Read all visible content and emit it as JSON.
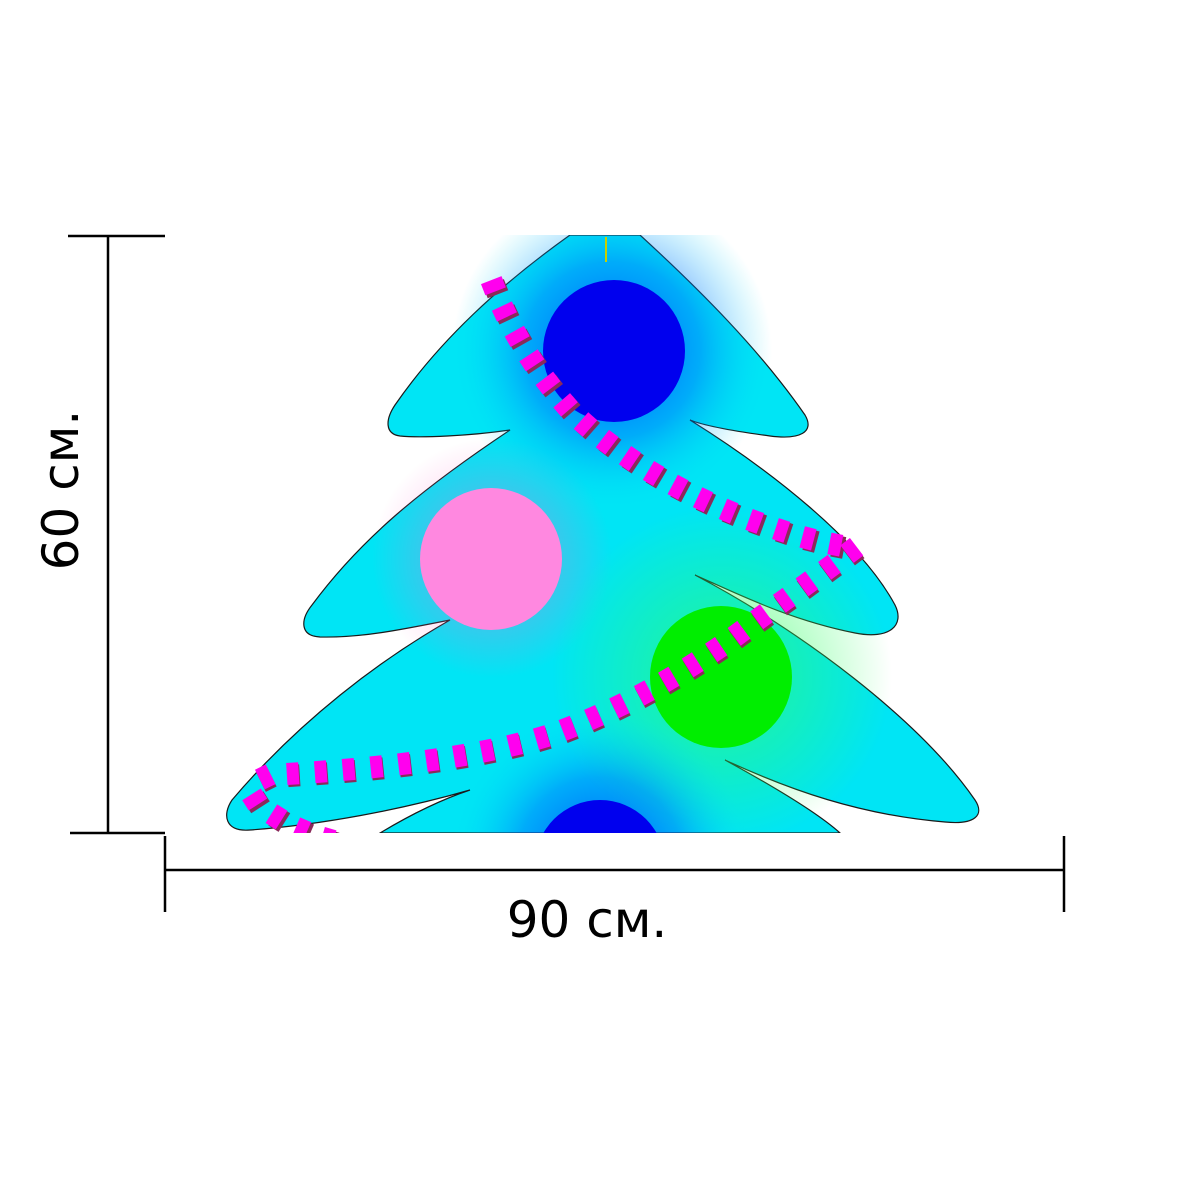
{
  "dimensions": {
    "height_label": "60 см.",
    "width_label": "90 см."
  },
  "artwork": {
    "subject": "christmas-tree",
    "colors": {
      "tree": "#00e5f5",
      "outline": "#1a1a1a",
      "ornament_blue": "#0000ee",
      "ornament_pink": "#ff88e0",
      "ornament_green": "#00ee00",
      "garland": "#ff00ee",
      "garland_shadow": "#8a2a5a",
      "dimension_lines": "#000000"
    },
    "ornaments": [
      {
        "name": "ornament-blue-top",
        "color": "ornament_blue"
      },
      {
        "name": "ornament-pink",
        "color": "ornament_pink"
      },
      {
        "name": "ornament-green",
        "color": "ornament_green"
      },
      {
        "name": "ornament-blue-bottom",
        "color": "ornament_blue"
      }
    ]
  }
}
